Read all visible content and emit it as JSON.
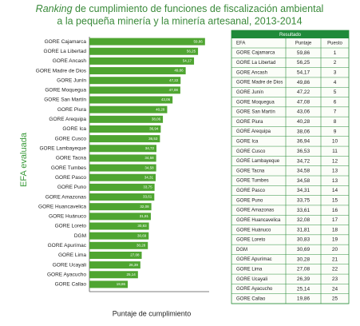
{
  "chart_data": {
    "type": "bar",
    "orientation": "horizontal",
    "title_emphasis": "Ranking",
    "title_lines": [
      "de cumplimiento de funciones de fiscalización ambiental",
      "a la pequeña minería y la minería artesanal, 2013-2014"
    ],
    "x_label": "Puntaje de cumplimiento",
    "y_label": "EFA evaluada",
    "color": "#4fa531",
    "categories": [
      "GORE Cajamarca",
      "GORE La Libertad",
      "GORE Ancash",
      "GORE Madre de Dios",
      "GORE Junín",
      "GORE Moquegua",
      "GORE San Martín",
      "GORE Piura",
      "GORE Arequipa",
      "GORE Ica",
      "GORE Cusco",
      "GORE Lambayeque",
      "GORE Tacna",
      "GORE Tumbes",
      "GORE Pasco",
      "GORE Puno",
      "GORE Amazonas",
      "GORE Huancavelica",
      "GORE Huánuco",
      "GORE Loreto",
      "DGM",
      "GORE Apurímac",
      "GORE Lima",
      "GORE Ucayali",
      "GORE Ayacucho",
      "GORE Callao"
    ],
    "values": [
      59.86,
      56.25,
      54.17,
      49.86,
      47.22,
      47.08,
      43.06,
      40.28,
      38.06,
      36.94,
      36.53,
      34.72,
      34.58,
      34.58,
      34.31,
      33.75,
      33.61,
      32.08,
      31.81,
      30.83,
      30.69,
      30.28,
      27.08,
      26.39,
      25.14,
      19.86
    ],
    "value_labels": [
      "59,86",
      "56,25",
      "54,17",
      "49,86",
      "47,22",
      "47,08",
      "43,06",
      "40,28",
      "38,06",
      "36,94",
      "36,53",
      "34,72",
      "34,58",
      "34,58",
      "34,31",
      "33,75",
      "33,61",
      "32,08",
      "31,81",
      "30,83",
      "30,69",
      "30,28",
      "27,08",
      "26,39",
      "25,14",
      "19,86"
    ],
    "xlim": [
      0,
      62
    ]
  },
  "table": {
    "title": "Resultado",
    "columns": [
      "EFA",
      "Puntaje",
      "Puesto"
    ],
    "ranks": [
      "1",
      "2",
      "3",
      "4",
      "5",
      "6",
      "7",
      "8",
      "9",
      "10",
      "11",
      "12",
      "13",
      "13",
      "14",
      "15",
      "16",
      "17",
      "18",
      "19",
      "20",
      "21",
      "22",
      "23",
      "24",
      "25"
    ]
  }
}
